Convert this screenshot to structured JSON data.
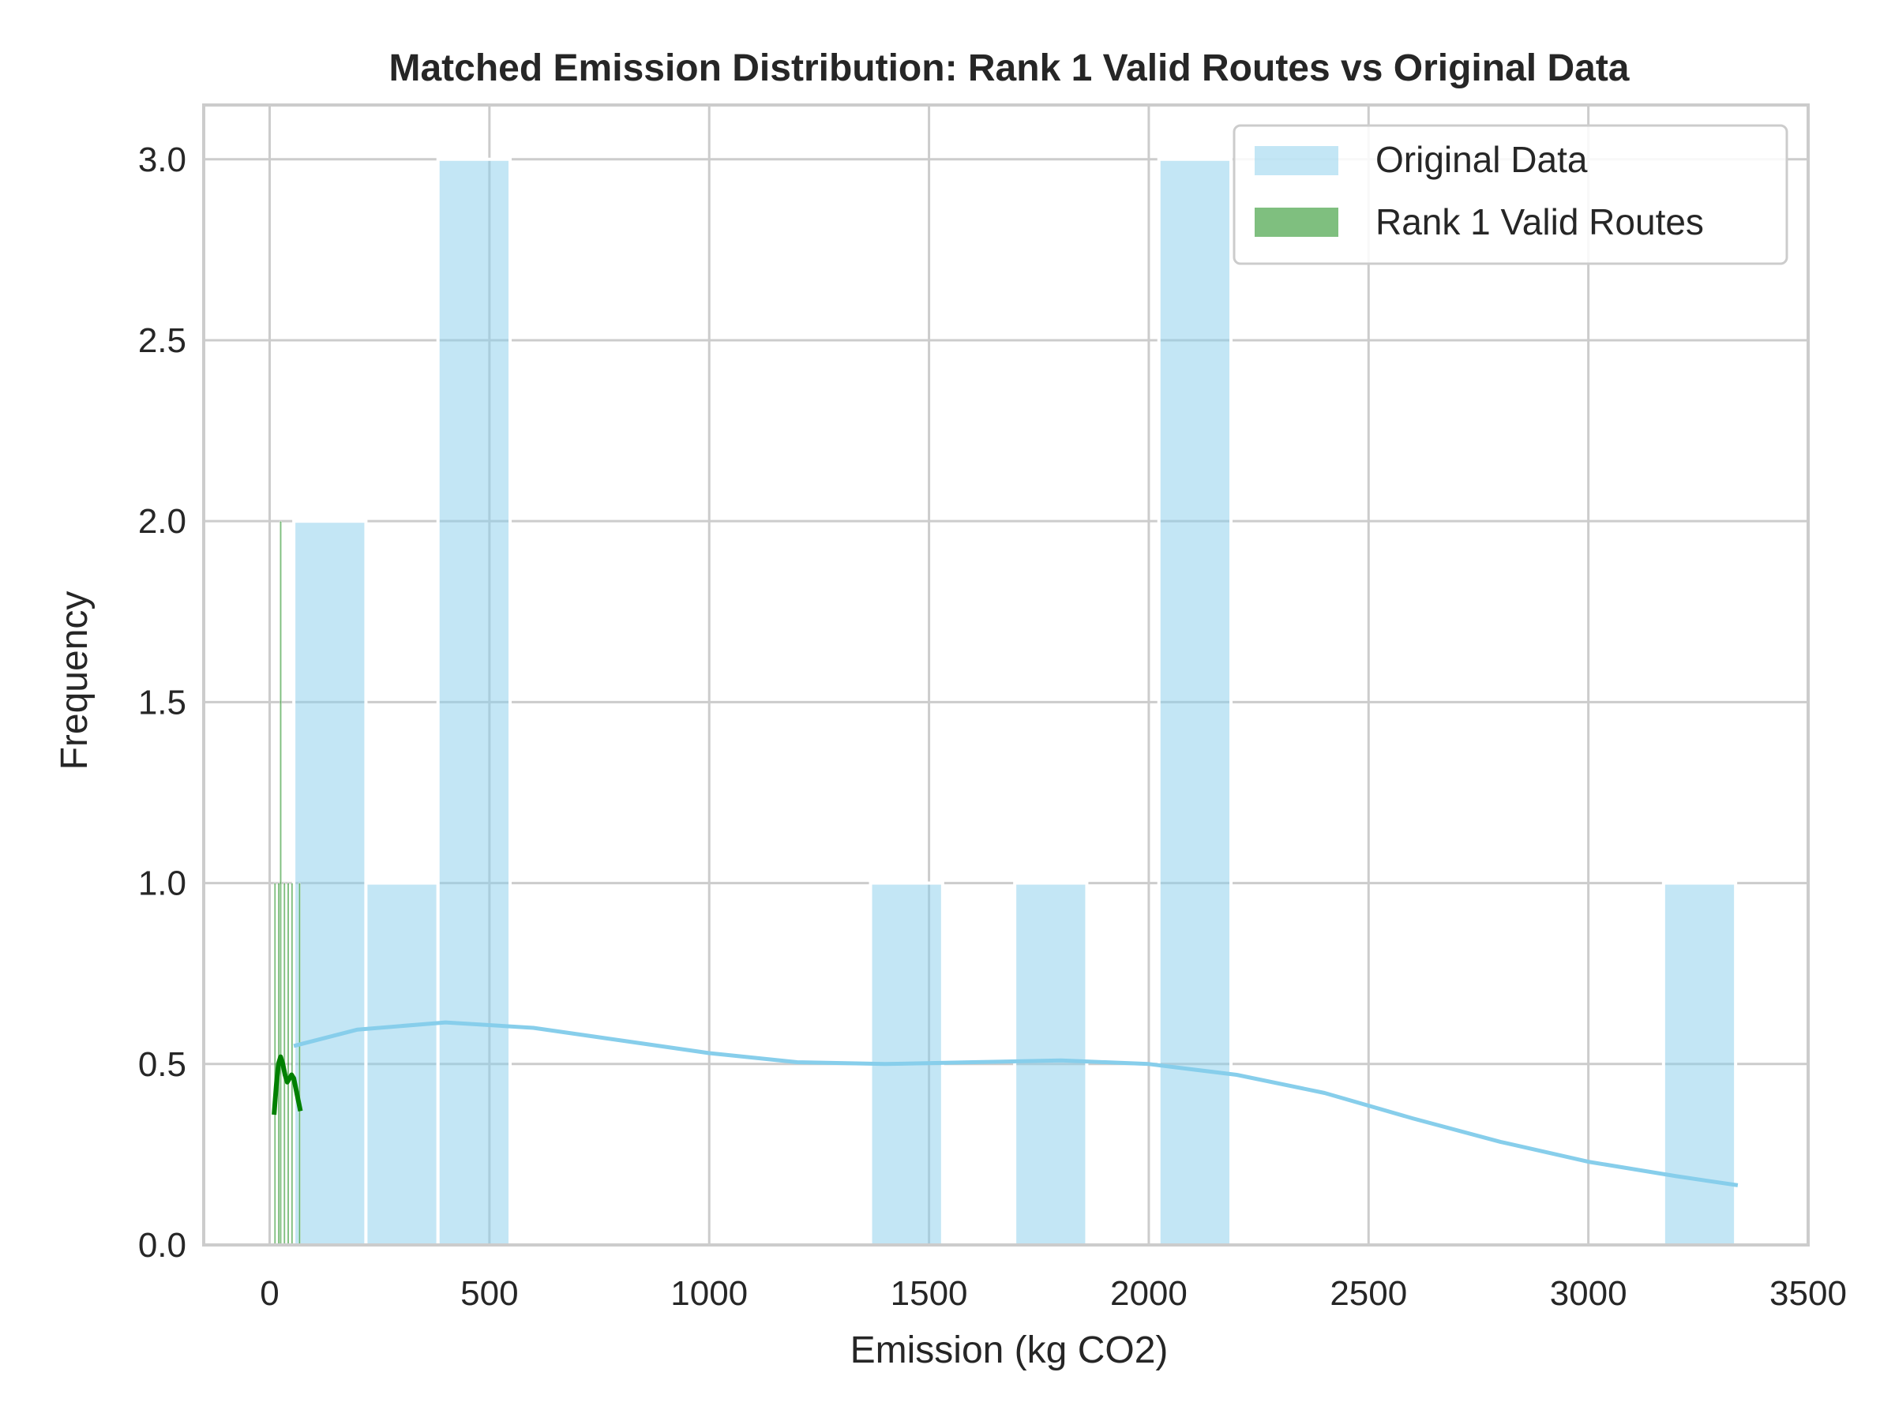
{
  "chart_data": {
    "type": "histogram",
    "title": "Matched Emission Distribution: Rank 1 Valid Routes vs Original Data",
    "xlabel": "Emission (kg CO2)",
    "ylabel": "Frequency",
    "xlim": [
      -150,
      3500
    ],
    "ylim": [
      0,
      3.15
    ],
    "x_ticks": [
      0,
      500,
      1000,
      1500,
      2000,
      2500,
      3000,
      3500
    ],
    "y_ticks": [
      0.0,
      0.5,
      1.0,
      1.5,
      2.0,
      2.5,
      3.0
    ],
    "x_tick_labels": [
      "0",
      "500",
      "1000",
      "1500",
      "2000",
      "2500",
      "3000",
      "3500"
    ],
    "y_tick_labels": [
      "0.0",
      "0.5",
      "1.0",
      "1.5",
      "2.0",
      "2.5",
      "3.0"
    ],
    "grid": true,
    "legend_position": "top-right",
    "series": [
      {
        "name": "Original Data",
        "color": "#87CEEB",
        "bins": [
          {
            "x0": 55,
            "x1": 219,
            "count": 2
          },
          {
            "x0": 219,
            "x1": 383,
            "count": 1
          },
          {
            "x0": 383,
            "x1": 547,
            "count": 3
          },
          {
            "x0": 1367,
            "x1": 1531,
            "count": 1
          },
          {
            "x0": 1695,
            "x1": 1859,
            "count": 1
          },
          {
            "x0": 2023,
            "x1": 2187,
            "count": 3
          },
          {
            "x0": 3171,
            "x1": 3335,
            "count": 1
          }
        ],
        "kde": [
          [
            55,
            0.55
          ],
          [
            200,
            0.595
          ],
          [
            400,
            0.615
          ],
          [
            600,
            0.6
          ],
          [
            800,
            0.565
          ],
          [
            1000,
            0.53
          ],
          [
            1200,
            0.505
          ],
          [
            1400,
            0.5
          ],
          [
            1600,
            0.505
          ],
          [
            1800,
            0.51
          ],
          [
            2000,
            0.5
          ],
          [
            2200,
            0.47
          ],
          [
            2400,
            0.42
          ],
          [
            2600,
            0.35
          ],
          [
            2800,
            0.285
          ],
          [
            3000,
            0.23
          ],
          [
            3200,
            0.19
          ],
          [
            3340,
            0.165
          ]
        ]
      },
      {
        "name": "Rank 1 Valid Routes",
        "color": "#008000",
        "bins": [
          {
            "x0": 10,
            "x1": 14.3,
            "count": 1
          },
          {
            "x0": 18.6,
            "x1": 22.9,
            "count": 1
          },
          {
            "x0": 22.9,
            "x1": 27.2,
            "count": 2
          },
          {
            "x0": 31.5,
            "x1": 35.8,
            "count": 1
          },
          {
            "x0": 40.1,
            "x1": 44.4,
            "count": 1
          },
          {
            "x0": 48.7,
            "x1": 53,
            "count": 1
          },
          {
            "x0": 65.9,
            "x1": 70.2,
            "count": 1
          }
        ],
        "kde": [
          [
            10,
            0.36
          ],
          [
            15,
            0.44
          ],
          [
            20,
            0.5
          ],
          [
            25,
            0.52
          ],
          [
            30,
            0.5
          ],
          [
            35,
            0.47
          ],
          [
            40,
            0.45
          ],
          [
            45,
            0.46
          ],
          [
            50,
            0.47
          ],
          [
            55,
            0.46
          ],
          [
            60,
            0.43
          ],
          [
            65,
            0.4
          ],
          [
            70,
            0.37
          ]
        ]
      }
    ]
  }
}
